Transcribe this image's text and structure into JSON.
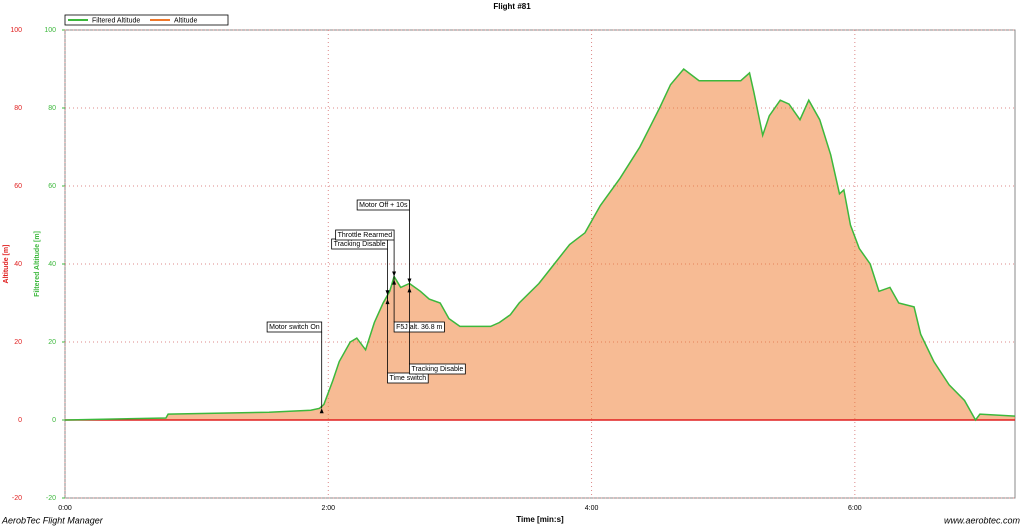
{
  "chart_data": {
    "type": "area",
    "title": "Flight #81",
    "x_label": "Time [min:s]",
    "y_label": "Altitude [m]",
    "y2_label": "Filtered Altitude [m]",
    "footer_left": "AerobTec Flight Manager",
    "footer_right": "www.aerobtec.com",
    "x": [
      0,
      46,
      47,
      93,
      112,
      116,
      118,
      122,
      125,
      130,
      133,
      137,
      141,
      145,
      148,
      150,
      153,
      157,
      162,
      166,
      171,
      175,
      180,
      187,
      194,
      198,
      203,
      207,
      216,
      223,
      230,
      237,
      244,
      253,
      262,
      271,
      276,
      282,
      289,
      298,
      308,
      312,
      314,
      318,
      321,
      326,
      330,
      335,
      339,
      344,
      349,
      353,
      355,
      358,
      362,
      367,
      371,
      376,
      380,
      387,
      390,
      396,
      403,
      410,
      415,
      417,
      433
    ],
    "series": [
      {
        "name": "Filtered Altitude",
        "color": "#3cb83c",
        "axis": "y2",
        "values": [
          0,
          0.5,
          1.5,
          2,
          2.5,
          3,
          4,
          10,
          15,
          20,
          21,
          18,
          25,
          30,
          33,
          36.8,
          34,
          35,
          33,
          31,
          30,
          26,
          24,
          24,
          24,
          25,
          27,
          30,
          35,
          40,
          45,
          48,
          55,
          62,
          70,
          80,
          86,
          90,
          87,
          87,
          87,
          89,
          84,
          73,
          78,
          82,
          81,
          77,
          82,
          77,
          68,
          58,
          59,
          50,
          44,
          40,
          33,
          34,
          30,
          29,
          22,
          15,
          9,
          5,
          0,
          1.5,
          1
        ]
      },
      {
        "name": "Altitude",
        "color": "#f0782a",
        "values": [
          0,
          0.5,
          1.5,
          2,
          2.5,
          3,
          4,
          10,
          15,
          20,
          21,
          18,
          25,
          30,
          33,
          36.8,
          34,
          35,
          33,
          31,
          30,
          26,
          24,
          24,
          24,
          25,
          27,
          30,
          35,
          40,
          45,
          48,
          55,
          62,
          70,
          80,
          86,
          90,
          87,
          87,
          87,
          89,
          84,
          73,
          78,
          82,
          81,
          77,
          82,
          77,
          68,
          58,
          59,
          50,
          44,
          40,
          33,
          34,
          30,
          29,
          22,
          15,
          9,
          5,
          0,
          1.5,
          1
        ]
      }
    ],
    "xlim": [
      0,
      433
    ],
    "xticks": [
      {
        "value": 0,
        "label": "0:00"
      },
      {
        "value": 120,
        "label": "2:00"
      },
      {
        "value": 240,
        "label": "4:00"
      },
      {
        "value": 360,
        "label": "6:00"
      }
    ],
    "ylim": [
      -20,
      100
    ],
    "yticks": [
      -20,
      0,
      20,
      40,
      60,
      80,
      100
    ],
    "y2lim": [
      -20,
      100
    ],
    "y2ticks": [
      -20,
      0,
      20,
      40,
      60,
      80,
      100
    ],
    "grid": true,
    "legend": "top-left",
    "annotations": [
      {
        "text": "Motor switch On",
        "x": 117,
        "y": 3
      },
      {
        "text": "Tracking Disable",
        "x": 147,
        "y": 31
      },
      {
        "text": "Throttle Rearmed",
        "x": 150,
        "y": 36
      },
      {
        "text": "Motor Off + 10s",
        "x": 157,
        "y": 34
      },
      {
        "text": "Time switch",
        "x": 147,
        "y": 32
      },
      {
        "text": "F5J alt. 36.8 m",
        "x": 150,
        "y": 36.8
      },
      {
        "text": "Tracking Disable",
        "x": 157,
        "y": 35
      }
    ]
  }
}
